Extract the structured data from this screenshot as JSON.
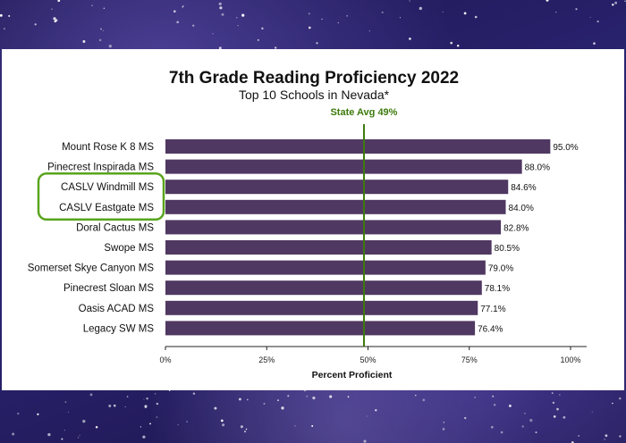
{
  "chart_data": {
    "type": "bar",
    "orientation": "horizontal",
    "title": "7th Grade Reading Proficiency 2022",
    "subtitle": "Top 10 Schools in Nevada*",
    "xlabel": "Percent Proficient",
    "xlim": [
      0,
      100
    ],
    "xticks": [
      "0%",
      "25%",
      "50%",
      "75%",
      "100%"
    ],
    "xtick_values": [
      0,
      25,
      50,
      75,
      100
    ],
    "categories": [
      "Mount Rose K 8 MS",
      "Pinecrest Inspirada MS",
      "CASLV Windmill MS",
      "CASLV Eastgate MS",
      "Doral Cactus  MS",
      "Swope MS",
      "Somerset Skye Canyon MS",
      "Pinecrest Sloan MS",
      "Oasis ACAD MS",
      "Legacy SW MS"
    ],
    "values": [
      95.0,
      88.0,
      84.6,
      84.0,
      82.8,
      80.5,
      79.0,
      78.1,
      77.1,
      76.4
    ],
    "value_labels": [
      "95.0%",
      "88.0%",
      "84.6%",
      "84.0%",
      "82.8%",
      "80.5%",
      "79.0%",
      "78.1%",
      "77.1%",
      "76.4%"
    ],
    "reference_line": {
      "value": 49,
      "label": "State Avg 49%"
    },
    "highlighted_categories": [
      "CASLV Windmill MS",
      "CASLV Eastgate MS"
    ],
    "grid": false,
    "colors": {
      "bar": "#4f3861",
      "reference": "#3d7a0c",
      "highlight_box": "#59a41d"
    }
  }
}
